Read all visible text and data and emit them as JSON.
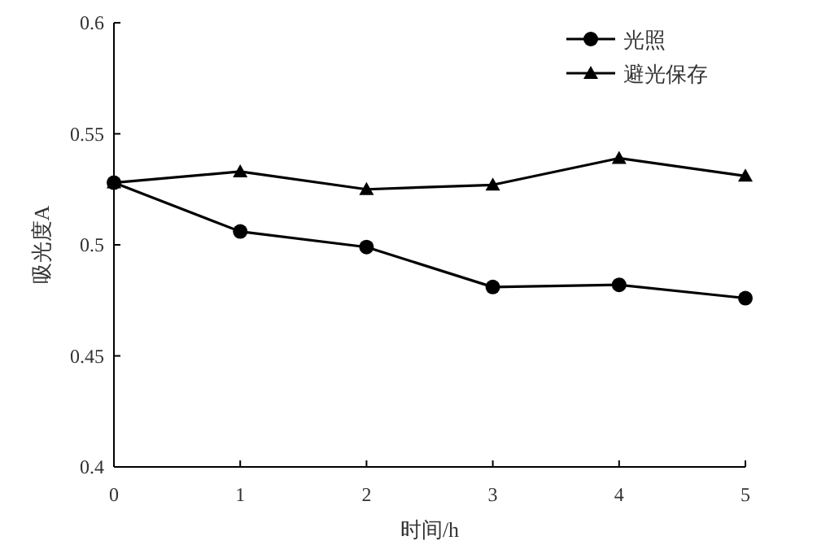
{
  "chart_data": {
    "type": "line",
    "xlabel": "时间/h",
    "ylabel": "吸光度A",
    "x": [
      0,
      1,
      2,
      3,
      4,
      5
    ],
    "series": [
      {
        "name": "光照",
        "color": "#000000",
        "marker": "circle",
        "values": [
          0.528,
          0.506,
          0.499,
          0.481,
          0.482,
          0.476
        ]
      },
      {
        "name": "避光保存",
        "color": "#000000",
        "marker": "triangle",
        "values": [
          0.528,
          0.533,
          0.525,
          0.527,
          0.539,
          0.531
        ]
      }
    ],
    "xlim": [
      0,
      5
    ],
    "xticks": [
      0,
      1,
      2,
      3,
      4,
      5
    ],
    "ylim": [
      0.4,
      0.6
    ],
    "yticks": [
      0.4,
      0.45,
      0.5,
      0.55,
      0.6
    ],
    "legend": "top right",
    "line_style": "solid",
    "grid": false
  }
}
